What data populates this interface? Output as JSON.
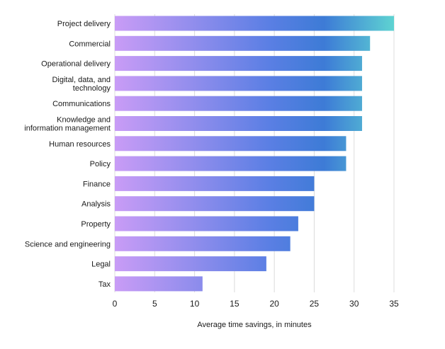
{
  "chart_data": {
    "type": "bar",
    "orientation": "horizontal",
    "title": "",
    "categories": [
      [
        "Project delivery"
      ],
      [
        "Commercial"
      ],
      [
        "Operational delivery"
      ],
      [
        "Digital, data, and",
        "technology"
      ],
      [
        "Communications"
      ],
      [
        "Knowledge and",
        "information management"
      ],
      [
        "Human resources"
      ],
      [
        "Policy"
      ],
      [
        "Finance"
      ],
      [
        "Analysis"
      ],
      [
        "Property"
      ],
      [
        "Science and engineering"
      ],
      [
        "Legal"
      ],
      [
        "Tax"
      ]
    ],
    "values": [
      35,
      32,
      31,
      31,
      31,
      31,
      29,
      29,
      25,
      25,
      23,
      22,
      19,
      11
    ],
    "xlabel": "Average time savings, in minutes",
    "ylabel": "",
    "xlim": [
      0,
      35
    ],
    "xticks": [
      0,
      5,
      10,
      15,
      20,
      25,
      30,
      35
    ],
    "grid": true,
    "colors": {
      "bar_gradient_start": "#c99cf6",
      "bar_gradient_mid": "#5b7fe4",
      "bar_gradient_dark": "#3d7bd6",
      "bar_gradient_end": "#5ed3d2",
      "grid": "#dcdcdc",
      "text": "#1a1a1a"
    }
  }
}
